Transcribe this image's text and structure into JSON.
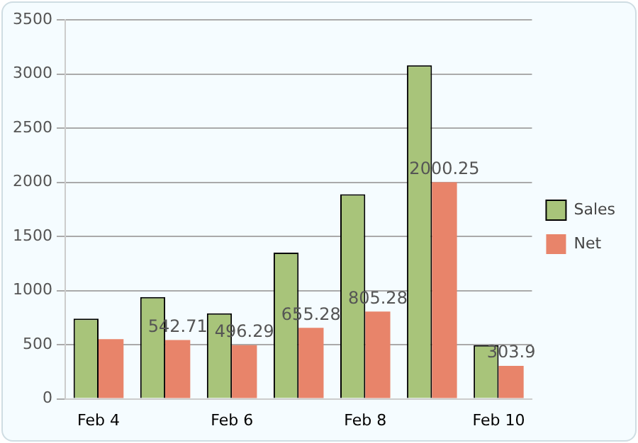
{
  "chart_data": {
    "type": "bar",
    "categories": [
      "Feb 4",
      null,
      "Feb 6",
      null,
      "Feb 8",
      null,
      "Feb 10"
    ],
    "series": [
      {
        "name": "Sales",
        "color": "#a8c47a",
        "values": [
          740,
          940,
          790,
          1350,
          1890,
          3080,
          495
        ]
      },
      {
        "name": "Net",
        "color": "#e8846a",
        "values": [
          552,
          542.71,
          496.29,
          655.28,
          805.28,
          2000.25,
          303.9
        ],
        "value_labels": [
          null,
          "542.71",
          "496.29",
          "655.28",
          "805.28",
          "2000.25",
          "303.9"
        ]
      }
    ],
    "ylim": [
      0,
      3500
    ],
    "yticks": [
      0,
      500,
      1000,
      1500,
      2000,
      2500,
      3000,
      3500
    ],
    "grid": "y",
    "legend": "right"
  }
}
